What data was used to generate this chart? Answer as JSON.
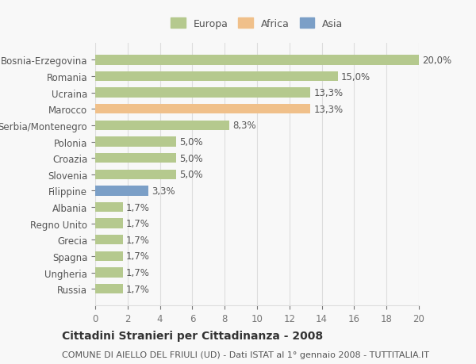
{
  "categories": [
    "Russia",
    "Ungheria",
    "Spagna",
    "Grecia",
    "Regno Unito",
    "Albania",
    "Filippine",
    "Slovenia",
    "Croazia",
    "Polonia",
    "Serbia/Montenegro",
    "Marocco",
    "Ucraina",
    "Romania",
    "Bosnia-Erzegovina"
  ],
  "values": [
    1.7,
    1.7,
    1.7,
    1.7,
    1.7,
    1.7,
    3.3,
    5.0,
    5.0,
    5.0,
    8.3,
    13.3,
    13.3,
    15.0,
    20.0
  ],
  "labels": [
    "1,7%",
    "1,7%",
    "1,7%",
    "1,7%",
    "1,7%",
    "1,7%",
    "3,3%",
    "5,0%",
    "5,0%",
    "5,0%",
    "8,3%",
    "13,3%",
    "13,3%",
    "15,0%",
    "20,0%"
  ],
  "continent": [
    "Europa",
    "Europa",
    "Europa",
    "Europa",
    "Europa",
    "Europa",
    "Asia",
    "Europa",
    "Europa",
    "Europa",
    "Europa",
    "Africa",
    "Europa",
    "Europa",
    "Europa"
  ],
  "colors": {
    "Europa": "#b5c98e",
    "Africa": "#f0c08a",
    "Asia": "#7b9fc7"
  },
  "legend_colors": {
    "Europa": "#b5c98e",
    "Africa": "#f0c08a",
    "Asia": "#7b9fc7"
  },
  "xlim": [
    0,
    20
  ],
  "xticks": [
    0,
    2,
    4,
    6,
    8,
    10,
    12,
    14,
    16,
    18,
    20
  ],
  "title_bold": "Cittadini Stranieri per Cittadinanza - 2008",
  "subtitle": "COMUNE DI AIELLO DEL FRIULI (UD) - Dati ISTAT al 1° gennaio 2008 - TUTTITALIA.IT",
  "background_color": "#f8f8f8",
  "grid_color": "#dddddd",
  "bar_height": 0.6,
  "label_fontsize": 8.5,
  "ytick_fontsize": 8.5,
  "xtick_fontsize": 8.5,
  "title_fontsize": 10,
  "subtitle_fontsize": 8
}
